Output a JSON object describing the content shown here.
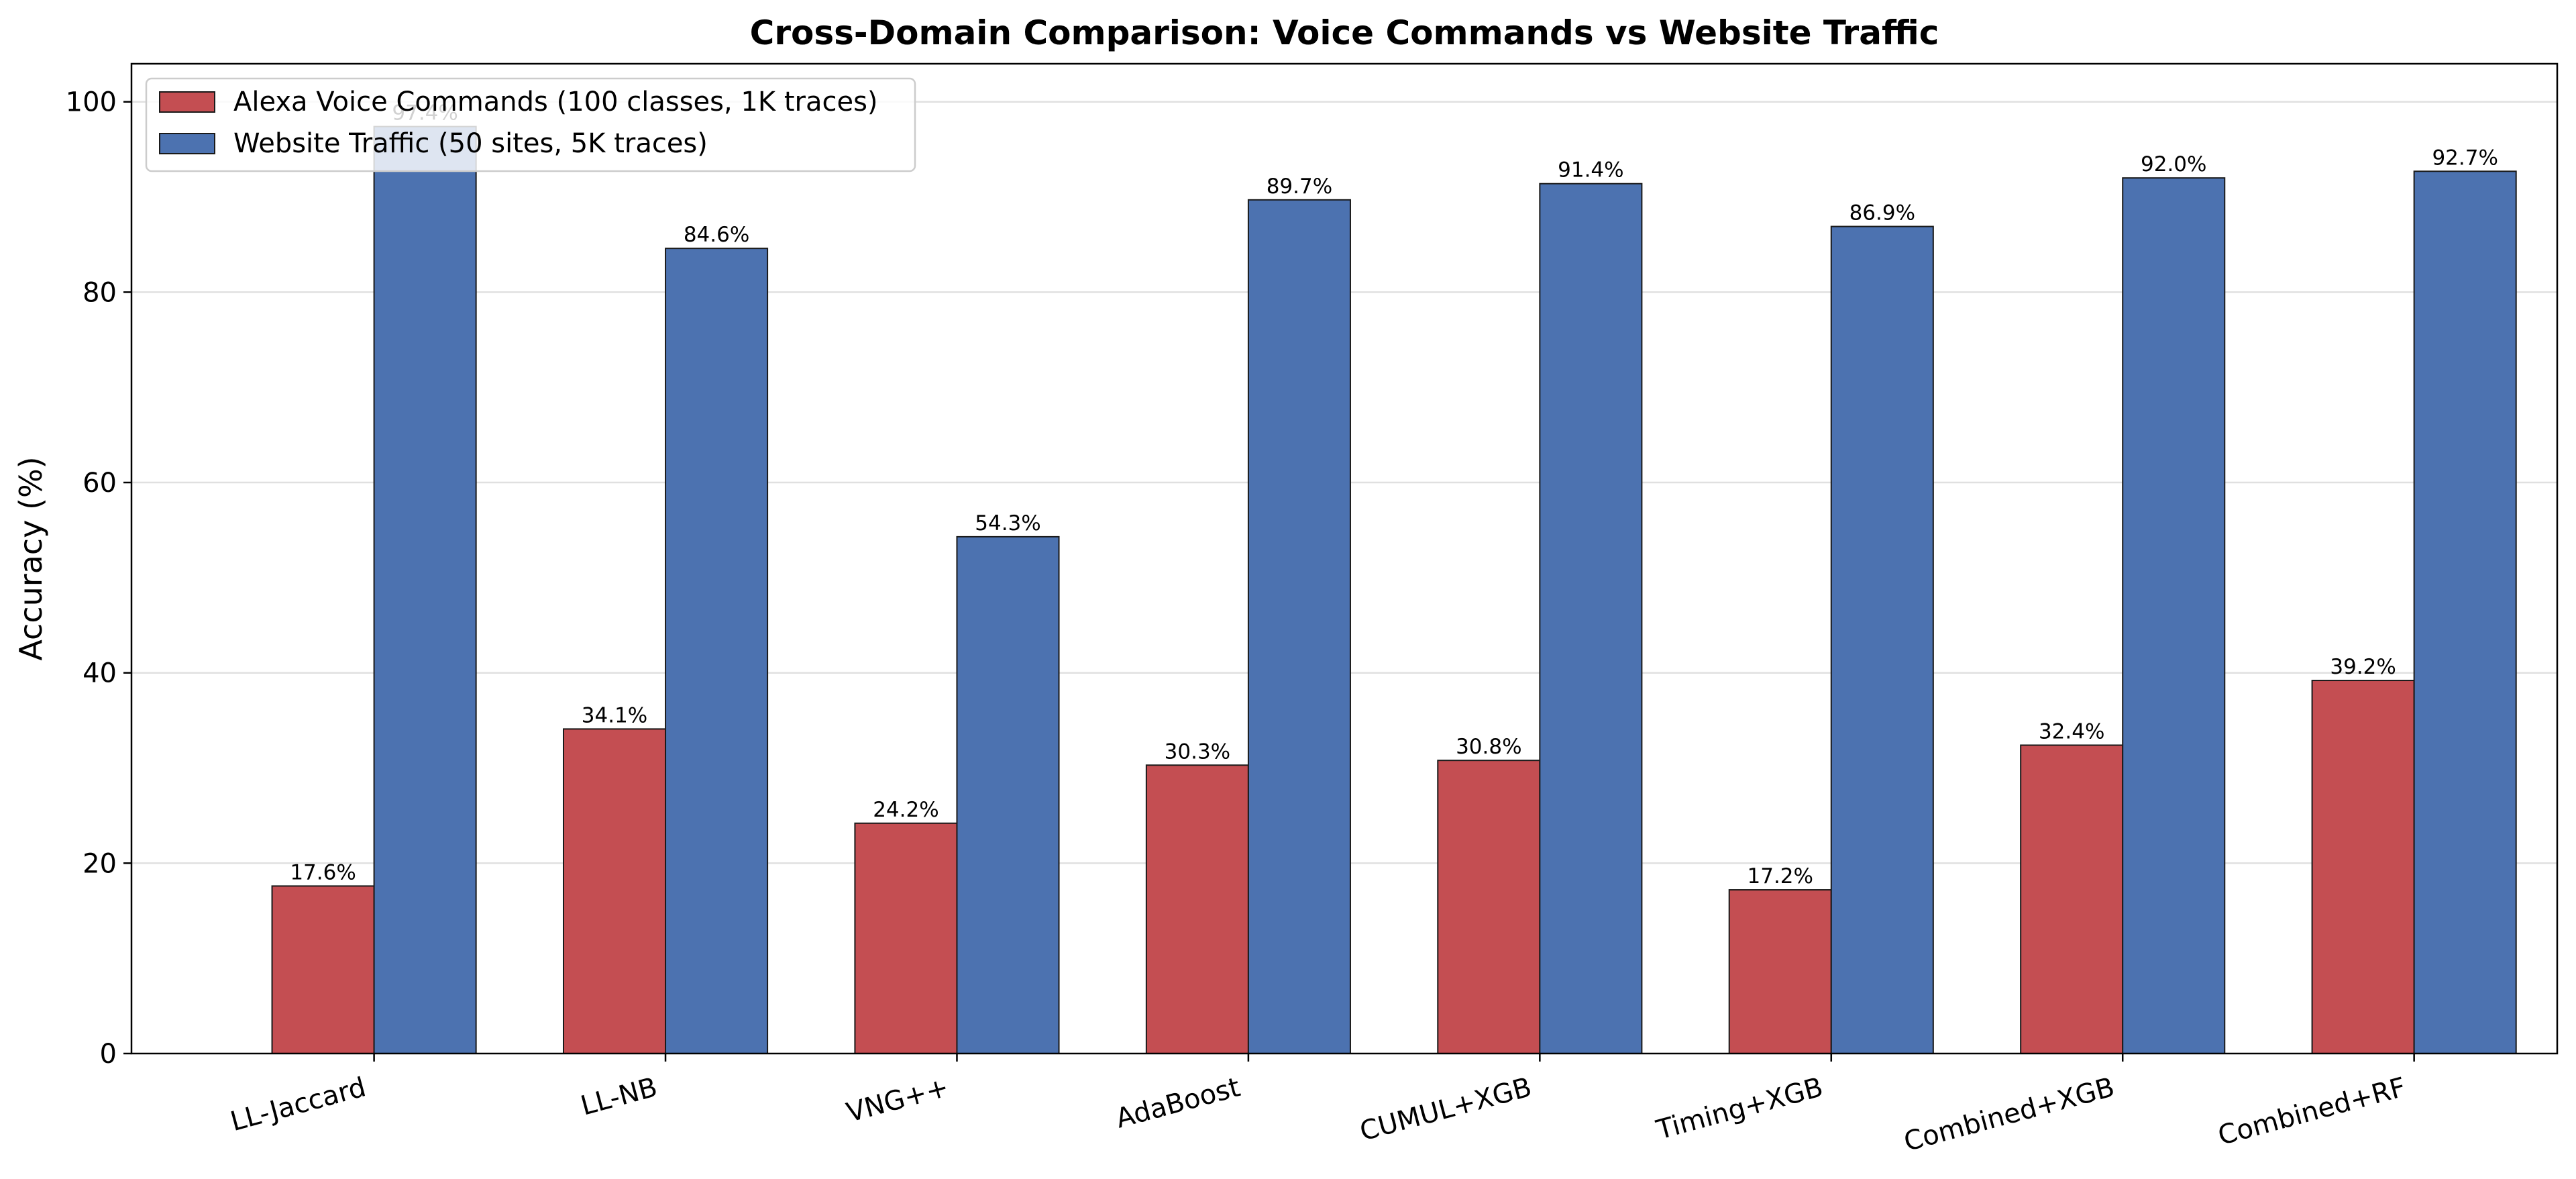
{
  "chart_data": {
    "type": "bar",
    "title": "Cross-Domain Comparison: Voice Commands vs Website Traffic",
    "xlabel": "",
    "ylabel": "Accuracy (%)",
    "ylim": [
      0,
      104
    ],
    "yticks": [
      0,
      20,
      40,
      60,
      80,
      100
    ],
    "grid": "horizontal",
    "legend_position": "top-left",
    "categories": [
      "LL-Jaccard",
      "LL-NB",
      "VNG++",
      "AdaBoost",
      "CUMUL+XGB",
      "Timing+XGB",
      "Combined+XGB",
      "Combined+RF"
    ],
    "series": [
      {
        "name": "Alexa Voice Commands (100 classes, 1K traces)",
        "color": "#c44e52",
        "values": [
          17.6,
          34.1,
          24.2,
          30.3,
          30.8,
          17.2,
          32.4,
          39.2
        ],
        "labels": [
          "17.6%",
          "34.1%",
          "24.2%",
          "30.3%",
          "30.8%",
          "17.2%",
          "32.4%",
          "39.2%"
        ]
      },
      {
        "name": "Website Traffic (50 sites, 5K traces)",
        "color": "#4c72b0",
        "values": [
          97.4,
          84.6,
          54.3,
          89.7,
          91.4,
          86.9,
          92.0,
          92.7
        ],
        "labels": [
          "97.4%",
          "84.6%",
          "54.3%",
          "89.7%",
          "91.4%",
          "86.9%",
          "92.0%",
          "92.7%"
        ]
      }
    ]
  }
}
